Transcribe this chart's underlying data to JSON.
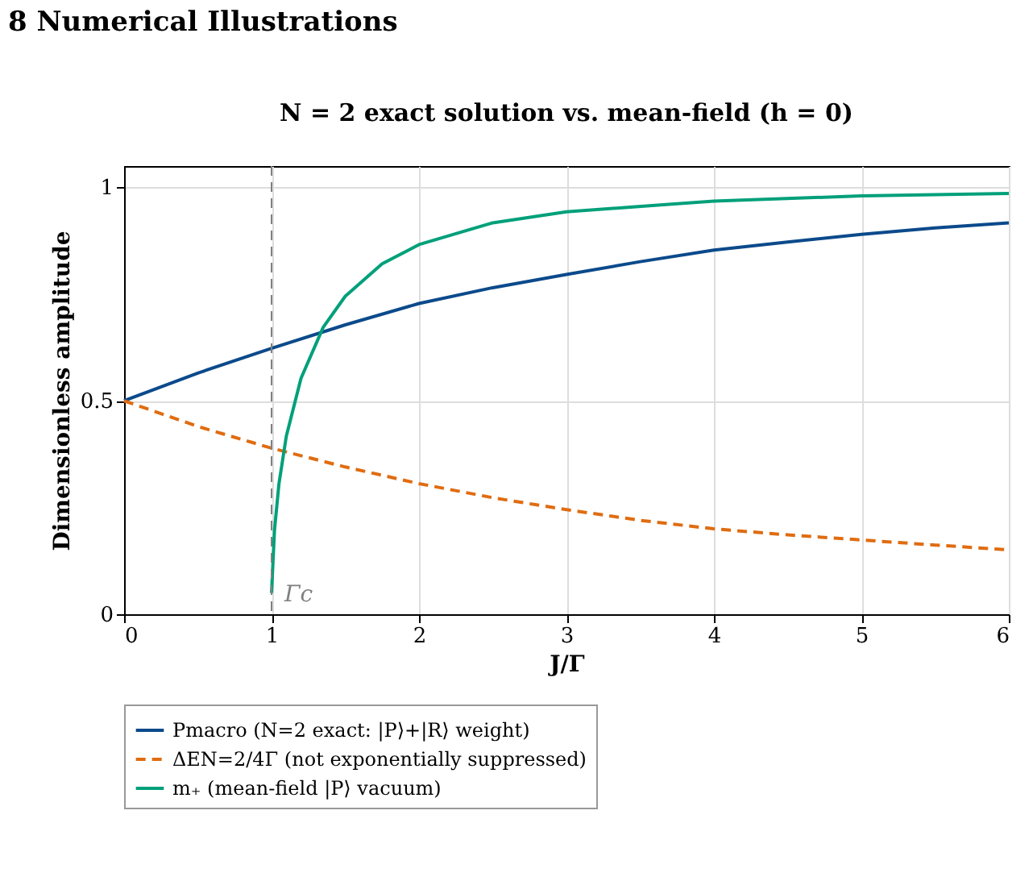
{
  "chart_data": {
    "type": "line",
    "title": "N = 2 exact solution vs. mean-field (h = 0)",
    "xlabel": "J/Γ",
    "ylabel": "Dimensionless amplitude",
    "annotations": [
      "8 Numerical Illustrations"
    ],
    "xlim": [
      0,
      6
    ],
    "xticks": [
      0,
      1,
      2,
      3,
      4,
      5,
      6
    ],
    "ylim": [
      0,
      1.05
    ],
    "yticks": [
      0,
      0.5,
      1
    ],
    "grid": true,
    "legend": "bottom",
    "marker": "none",
    "ref_lines": [
      {
        "axis": "x",
        "value": 1,
        "label": "Γc",
        "color": "#808080",
        "line_style": "dashed"
      }
    ],
    "series": [
      {
        "name": "Pmacro (N=2 exact: |P⟩+|R⟩ weight)",
        "color": "#0b4a8b",
        "line_style": "solid",
        "x": [
          0,
          0.5,
          1,
          1.5,
          2,
          2.5,
          3,
          3.5,
          4,
          4.5,
          5,
          5.5,
          6
        ],
        "values": [
          0.5,
          0.565,
          0.623,
          0.678,
          0.728,
          0.765,
          0.796,
          0.826,
          0.853,
          0.872,
          0.89,
          0.905,
          0.917
        ]
      },
      {
        "name": "ΔEN=2/4Γ (not exponentially suppressed)",
        "color": "#e06c10",
        "line_style": "dashed",
        "x": [
          0,
          0.5,
          1,
          1.5,
          2,
          2.5,
          3,
          3.5,
          4,
          4.5,
          5,
          5.5,
          6
        ],
        "values": [
          0.5,
          0.44,
          0.389,
          0.345,
          0.306,
          0.273,
          0.245,
          0.22,
          0.2,
          0.186,
          0.174,
          0.162,
          0.151
        ]
      },
      {
        "name": "m₊ (mean-field |P⟩ vacuum)",
        "color": "#00a07a",
        "line_style": "solid",
        "x": [
          1,
          1.02,
          1.05,
          1.1,
          1.2,
          1.35,
          1.5,
          1.75,
          2,
          2.5,
          3,
          4,
          5,
          6
        ],
        "values": [
          0.05,
          0.197,
          0.305,
          0.417,
          0.553,
          0.672,
          0.745,
          0.821,
          0.866,
          0.917,
          0.943,
          0.968,
          0.98,
          0.986
        ]
      }
    ]
  }
}
